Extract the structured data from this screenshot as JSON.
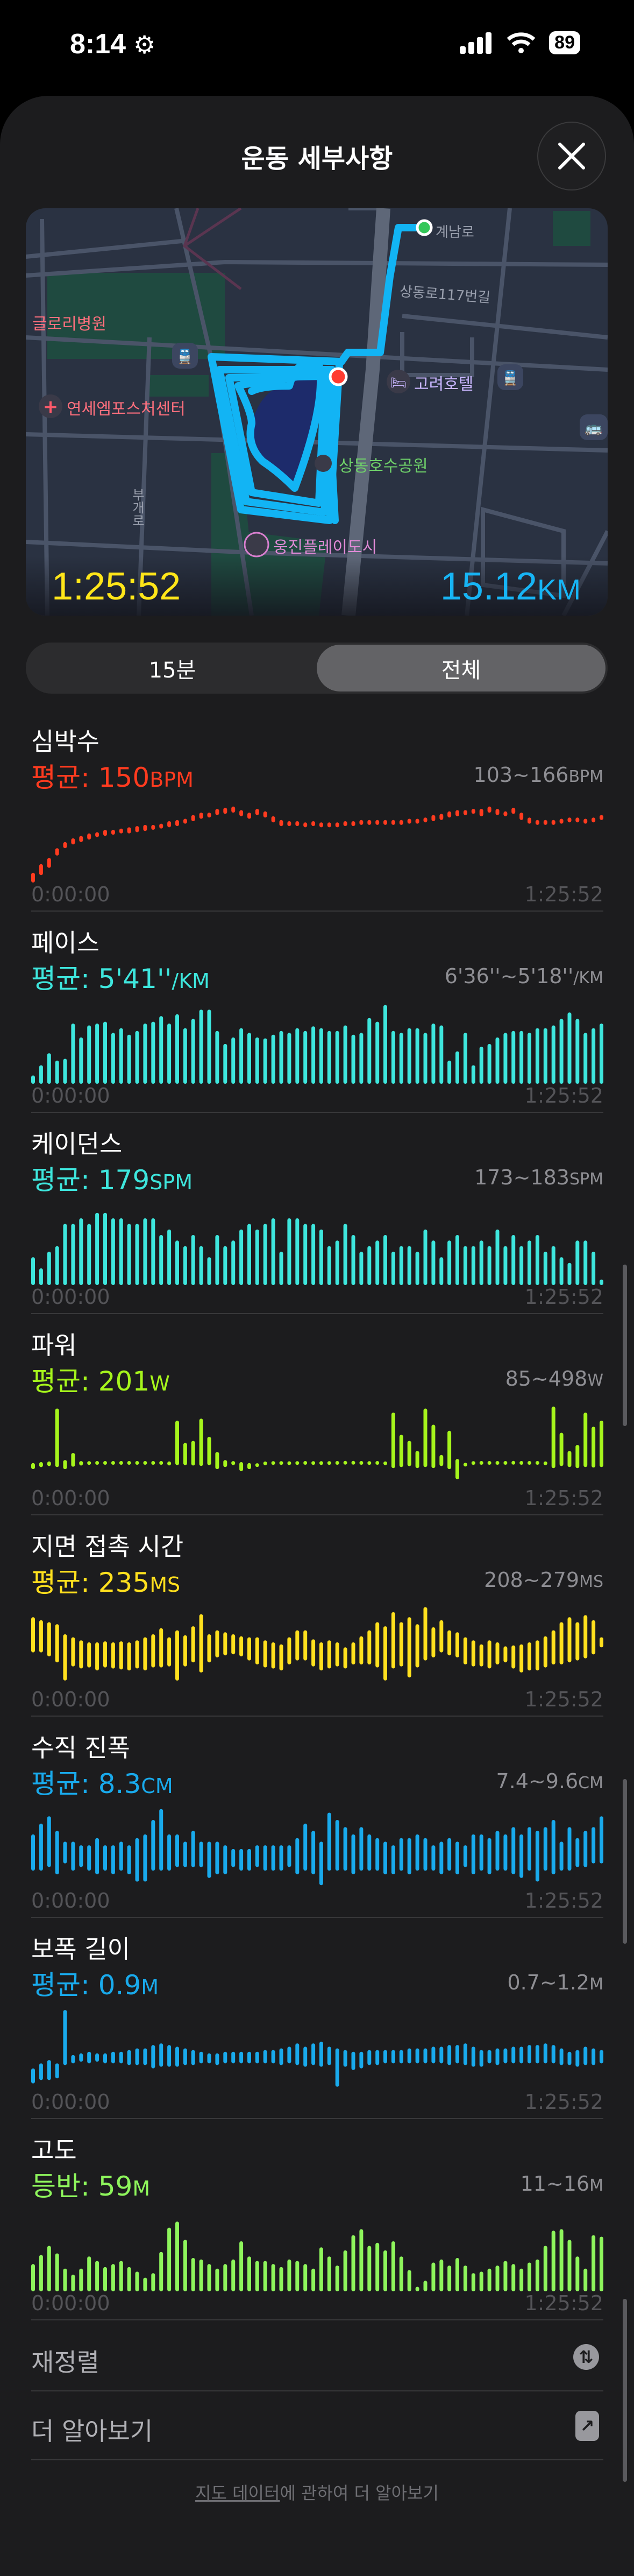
{
  "status_bar": {
    "time": "8:14",
    "battery": "89",
    "icons": [
      "gear-icon",
      "cellular-signal-icon",
      "wifi-icon",
      "battery-icon"
    ]
  },
  "header": {
    "title": "운동 세부사항",
    "close_icon": "close-icon"
  },
  "map": {
    "elapsed": "1:25:52",
    "distance_value": "15.12",
    "distance_unit": "KM",
    "labels": {
      "road_1": "계남로",
      "road_2": "상동로117번길",
      "road_3": "부개로",
      "hospital": "글로리병원",
      "clinic": "연세엠포스처센터",
      "hotel": "고려호텔",
      "park": "상동호수공원",
      "leisure": "웅진플레이도시"
    },
    "colors": {
      "route": "#12b4f4",
      "start": "#34c759",
      "end": "#ff3b30",
      "elapsed": "#ffe619",
      "distance": "#17b5f5"
    }
  },
  "segment": {
    "options": [
      "15분",
      "전체"
    ],
    "selected": "전체"
  },
  "x_axis": {
    "start": "0:00:00",
    "end": "1:25:52"
  },
  "chart_data": [
    {
      "key": "heart",
      "type": "bar",
      "style": "range",
      "title": "심박수",
      "avg_label": "평균: ",
      "avg_value": "150",
      "unit": "BPM",
      "range_text": "103~166",
      "color": "#ff3b1f",
      "ylim": [
        100,
        168
      ],
      "low": [
        100,
        106,
        112,
        122,
        128,
        131,
        133,
        135,
        137,
        138,
        139,
        140,
        140,
        141,
        142,
        143,
        144,
        145,
        146,
        148,
        150,
        152,
        153,
        155,
        156,
        157,
        154,
        152,
        155,
        153,
        149,
        146,
        146,
        146,
        145,
        146,
        145,
        145,
        145,
        146,
        146,
        147,
        147,
        147,
        147,
        147,
        147,
        148,
        148,
        149,
        150,
        151,
        153,
        154,
        155,
        156,
        154,
        157,
        155,
        154,
        156,
        151,
        148,
        147,
        147,
        147,
        148,
        149,
        149,
        148,
        149,
        151
      ],
      "high": [
        108,
        115,
        120,
        128,
        133,
        136,
        138,
        140,
        141,
        143,
        143,
        144,
        145,
        146,
        147,
        147,
        148,
        150,
        151,
        152,
        155,
        157,
        157,
        160,
        161,
        162,
        159,
        157,
        160,
        158,
        154,
        151,
        150,
        150,
        149,
        150,
        149,
        149,
        149,
        150,
        150,
        151,
        151,
        151,
        151,
        151,
        151,
        152,
        152,
        153,
        155,
        156,
        158,
        159,
        159,
        160,
        160,
        162,
        160,
        158,
        161,
        157,
        153,
        151,
        151,
        151,
        152,
        153,
        153,
        152,
        153,
        155
      ]
    },
    {
      "key": "pace",
      "type": "bar",
      "style": "bottom",
      "title": "페이스",
      "avg_label": "평균: ",
      "avg_value": "5'41''",
      "unit": "/KM",
      "range_text": "6'36''~5'18''",
      "range_unit": "/KM",
      "color": "#3ee6dd",
      "ylim": [
        405,
        315
      ],
      "values": [
        396,
        385,
        372,
        380,
        378,
        340,
        355,
        342,
        340,
        338,
        350,
        345,
        352,
        348,
        340,
        338,
        332,
        340,
        330,
        345,
        335,
        325,
        325,
        348,
        362,
        355,
        345,
        350,
        355,
        356,
        352,
        348,
        350,
        345,
        348,
        343,
        345,
        348,
        348,
        342,
        352,
        350,
        334,
        338,
        320,
        348,
        350,
        345,
        345,
        350,
        340,
        342,
        380,
        370,
        350,
        385,
        365,
        362,
        355,
        350,
        348,
        348,
        350,
        345,
        345,
        342,
        335,
        328,
        335,
        350,
        345,
        340
      ]
    },
    {
      "key": "cadence",
      "type": "bar",
      "style": "bottom",
      "title": "케이던스",
      "avg_label": "평균: ",
      "avg_value": "179",
      "unit": "SPM",
      "range_text": "173~183",
      "range_unit": "SPM",
      "color": "#3ee6dd",
      "ylim": [
        169,
        184
      ],
      "values": [
        174,
        172,
        175,
        176,
        180,
        180,
        181,
        180,
        182,
        182,
        181,
        181,
        180,
        180,
        181,
        181,
        178,
        179,
        177,
        176,
        178,
        176,
        174,
        178,
        176,
        177,
        179,
        180,
        179,
        180,
        181,
        175,
        181,
        181,
        180,
        180,
        179,
        176,
        177,
        180,
        178,
        175,
        176,
        177,
        178,
        175,
        176,
        176,
        175,
        179,
        177,
        174,
        177,
        178,
        176,
        176,
        177,
        176,
        179,
        176,
        178,
        176,
        177,
        178,
        175,
        176,
        174,
        173,
        177,
        177,
        175,
        170
      ]
    },
    {
      "key": "power",
      "type": "bar",
      "style": "range",
      "title": "파워",
      "avg_label": "평균: ",
      "avg_value": "201",
      "unit": "W",
      "range_text": "85~498",
      "range_unit": "W",
      "color": "#a6f51c",
      "ylim": [
        85,
        498
      ],
      "low": [
        170,
        180,
        185,
        180,
        170,
        182,
        188,
        194,
        196,
        196,
        195,
        196,
        196,
        196,
        196,
        195,
        196,
        188,
        190,
        190,
        188,
        186,
        190,
        170,
        180,
        190,
        160,
        170,
        185,
        192,
        194,
        195,
        194,
        195,
        196,
        195,
        194,
        195,
        195,
        196,
        196,
        196,
        195,
        195,
        190,
        175,
        180,
        185,
        175,
        180,
        175,
        185,
        170,
        120,
        185,
        195,
        196,
        196,
        195,
        196,
        196,
        195,
        196,
        196,
        192,
        175,
        185,
        180,
        175,
        180,
        178,
        180
      ],
      "high": [
        200,
        205,
        208,
        470,
        215,
        250,
        210,
        207,
        206,
        206,
        207,
        206,
        206,
        206,
        206,
        207,
        206,
        208,
        410,
        300,
        310,
        420,
        330,
        255,
        215,
        210,
        205,
        200,
        195,
        205,
        207,
        206,
        205,
        206,
        206,
        206,
        206,
        206,
        207,
        207,
        207,
        206,
        206,
        207,
        208,
        450,
        340,
        310,
        260,
        470,
        390,
        240,
        360,
        220,
        200,
        206,
        206,
        206,
        207,
        206,
        207,
        207,
        206,
        206,
        206,
        480,
        350,
        260,
        290,
        450,
        380,
        410
      ]
    },
    {
      "key": "gct",
      "type": "bar",
      "style": "range",
      "title": "지면 접촉 시간",
      "avg_label": "평균: ",
      "avg_value": "235",
      "unit": "MS",
      "range_text": "208~279",
      "range_unit": "MS",
      "color": "#ffe01e",
      "ylim": [
        205,
        288
      ],
      "low": [
        240,
        240,
        236,
        230,
        212,
        226,
        224,
        225,
        222,
        225,
        224,
        223,
        222,
        224,
        222,
        225,
        225,
        226,
        212,
        226,
        230,
        220,
        230,
        235,
        237,
        238,
        236,
        232,
        228,
        225,
        224,
        222,
        228,
        232,
        232,
        226,
        222,
        224,
        226,
        224,
        228,
        228,
        228,
        225,
        212,
        224,
        226,
        215,
        225,
        232,
        235,
        240,
        237,
        235,
        228,
        226,
        226,
        224,
        228,
        230,
        224,
        220,
        222,
        222,
        225,
        228,
        228,
        230,
        232,
        234,
        238,
        245
      ],
      "high": [
        275,
        272,
        270,
        268,
        258,
        255,
        252,
        250,
        250,
        251,
        250,
        251,
        250,
        252,
        255,
        258,
        264,
        255,
        262,
        257,
        266,
        278,
        258,
        262,
        260,
        258,
        256,
        255,
        255,
        252,
        250,
        248,
        255,
        262,
        262,
        253,
        250,
        252,
        250,
        245,
        250,
        256,
        262,
        270,
        266,
        280,
        270,
        275,
        268,
        285,
        265,
        272,
        262,
        260,
        255,
        252,
        248,
        252,
        250,
        246,
        247,
        248,
        250,
        252,
        256,
        262,
        270,
        275,
        270,
        277,
        272,
        255
      ]
    },
    {
      "key": "vo",
      "type": "bar",
      "style": "range",
      "title": "수직 진폭",
      "avg_label": "평균: ",
      "avg_value": "8.3",
      "unit": "CM",
      "range_text": "7.4~9.6",
      "range_unit": "CM",
      "color": "#19aaec",
      "ylim": [
        7.4,
        9.7
      ],
      "low": [
        7.9,
        7.9,
        8.0,
        7.8,
        8.1,
        7.9,
        8.0,
        7.9,
        7.8,
        7.9,
        7.8,
        7.9,
        7.8,
        7.6,
        7.6,
        7.9,
        7.9,
        7.9,
        8.0,
        8.0,
        8.0,
        8.0,
        7.7,
        7.8,
        7.8,
        8.0,
        7.9,
        7.9,
        8.0,
        7.9,
        7.9,
        7.9,
        8.0,
        7.8,
        7.9,
        7.8,
        7.5,
        7.9,
        7.9,
        7.9,
        7.8,
        7.9,
        7.9,
        7.9,
        7.8,
        7.8,
        7.9,
        7.8,
        7.9,
        7.9,
        7.9,
        7.8,
        7.9,
        7.8,
        8.0,
        7.8,
        7.9,
        7.8,
        7.9,
        7.9,
        7.8,
        7.7,
        7.9,
        7.6,
        7.9,
        7.8,
        7.9,
        7.9,
        8.0,
        8.0,
        8.1,
        8.1
      ],
      "high": [
        8.9,
        9.2,
        9.4,
        9.0,
        8.7,
        8.7,
        8.6,
        8.6,
        8.8,
        8.6,
        8.6,
        8.7,
        8.6,
        8.8,
        8.9,
        9.3,
        9.6,
        8.9,
        8.9,
        8.7,
        9.0,
        8.7,
        8.7,
        8.7,
        8.6,
        8.5,
        8.5,
        8.5,
        8.6,
        8.6,
        8.6,
        8.6,
        8.6,
        8.8,
        9.2,
        9.0,
        8.7,
        9.5,
        9.3,
        9.1,
        8.9,
        9.1,
        8.9,
        8.8,
        8.7,
        8.6,
        8.8,
        8.8,
        8.9,
        8.8,
        8.6,
        8.7,
        8.8,
        8.7,
        8.6,
        8.9,
        8.9,
        8.8,
        9.0,
        8.9,
        9.1,
        8.9,
        9.1,
        9.0,
        9.1,
        9.3,
        8.7,
        9.1,
        8.8,
        9.0,
        9.1,
        9.4
      ]
    },
    {
      "key": "stride",
      "type": "bar",
      "style": "range",
      "title": "보폭 길이",
      "avg_label": "평균: ",
      "avg_value": "0.9",
      "unit": "M",
      "range_text": "0.7~1.2",
      "range_unit": "M",
      "color": "#19aaec",
      "ylim": [
        0.7,
        1.2
      ],
      "low": [
        0.74,
        0.76,
        0.76,
        0.77,
        0.85,
        0.86,
        0.87,
        0.86,
        0.87,
        0.86,
        0.86,
        0.86,
        0.85,
        0.85,
        0.85,
        0.83,
        0.84,
        0.84,
        0.84,
        0.85,
        0.85,
        0.86,
        0.86,
        0.85,
        0.86,
        0.86,
        0.86,
        0.86,
        0.86,
        0.86,
        0.86,
        0.85,
        0.86,
        0.85,
        0.84,
        0.85,
        0.84,
        0.85,
        0.72,
        0.84,
        0.82,
        0.83,
        0.85,
        0.85,
        0.86,
        0.86,
        0.86,
        0.86,
        0.86,
        0.86,
        0.86,
        0.86,
        0.85,
        0.86,
        0.85,
        0.84,
        0.84,
        0.86,
        0.85,
        0.86,
        0.86,
        0.86,
        0.86,
        0.86,
        0.86,
        0.86,
        0.85,
        0.85,
        0.84,
        0.85,
        0.85,
        0.86
      ],
      "high": [
        0.83,
        0.86,
        0.88,
        0.86,
        1.18,
        0.91,
        0.92,
        0.93,
        0.92,
        0.92,
        0.93,
        0.93,
        0.94,
        0.95,
        0.95,
        0.97,
        0.98,
        0.97,
        0.96,
        0.95,
        0.94,
        0.93,
        0.92,
        0.92,
        0.93,
        0.93,
        0.93,
        0.93,
        0.93,
        0.94,
        0.94,
        0.95,
        0.96,
        0.98,
        0.96,
        0.98,
        0.99,
        0.96,
        0.95,
        0.94,
        0.93,
        0.93,
        0.94,
        0.94,
        0.94,
        0.94,
        0.94,
        0.95,
        0.95,
        0.95,
        0.96,
        0.96,
        0.97,
        0.97,
        0.98,
        0.96,
        0.94,
        0.94,
        0.95,
        0.95,
        0.96,
        0.96,
        0.97,
        0.97,
        0.98,
        0.97,
        0.95,
        0.93,
        0.94,
        0.96,
        0.95,
        0.94
      ]
    },
    {
      "key": "elevation",
      "type": "bar",
      "style": "bottom",
      "title": "고도",
      "avg_label": "등반: ",
      "avg_value": "59",
      "unit": "M",
      "range_text": "11~16",
      "range_unit": "M",
      "color": "#8ef55c",
      "ylim": [
        10.5,
        16
      ],
      "values": [
        12.3,
        12.9,
        13.5,
        13.0,
        12.0,
        11.6,
        12.0,
        12.8,
        12.5,
        12.1,
        12.3,
        12.5,
        12.1,
        11.8,
        11.4,
        11.7,
        13.1,
        14.7,
        15.1,
        13.9,
        12.7,
        12.6,
        12.3,
        12.0,
        12.3,
        12.6,
        13.8,
        12.8,
        12.5,
        12.5,
        12.3,
        12.1,
        12.6,
        12.5,
        12.3,
        12.0,
        13.4,
        12.8,
        12.2,
        13.2,
        14.2,
        14.6,
        13.5,
        13.7,
        13.2,
        13.8,
        12.8,
        11.9,
        10.8,
        11.2,
        12.4,
        12.6,
        12.2,
        12.7,
        12.2,
        11.7,
        11.8,
        12.0,
        12.2,
        12.5,
        12.3,
        12.0,
        12.4,
        12.6,
        13.5,
        14.5,
        14.6,
        13.9,
        12.8,
        12.0,
        14.2,
        14.1
      ]
    }
  ],
  "rows": [
    {
      "label": "재정렬",
      "icon": "reorder-arrows-icon"
    },
    {
      "label": "더 알아보기",
      "icon": "external-link-arrow-icon"
    }
  ],
  "footer": {
    "link": "지도 데이터",
    "rest": "에 관하여 더 알아보기"
  }
}
